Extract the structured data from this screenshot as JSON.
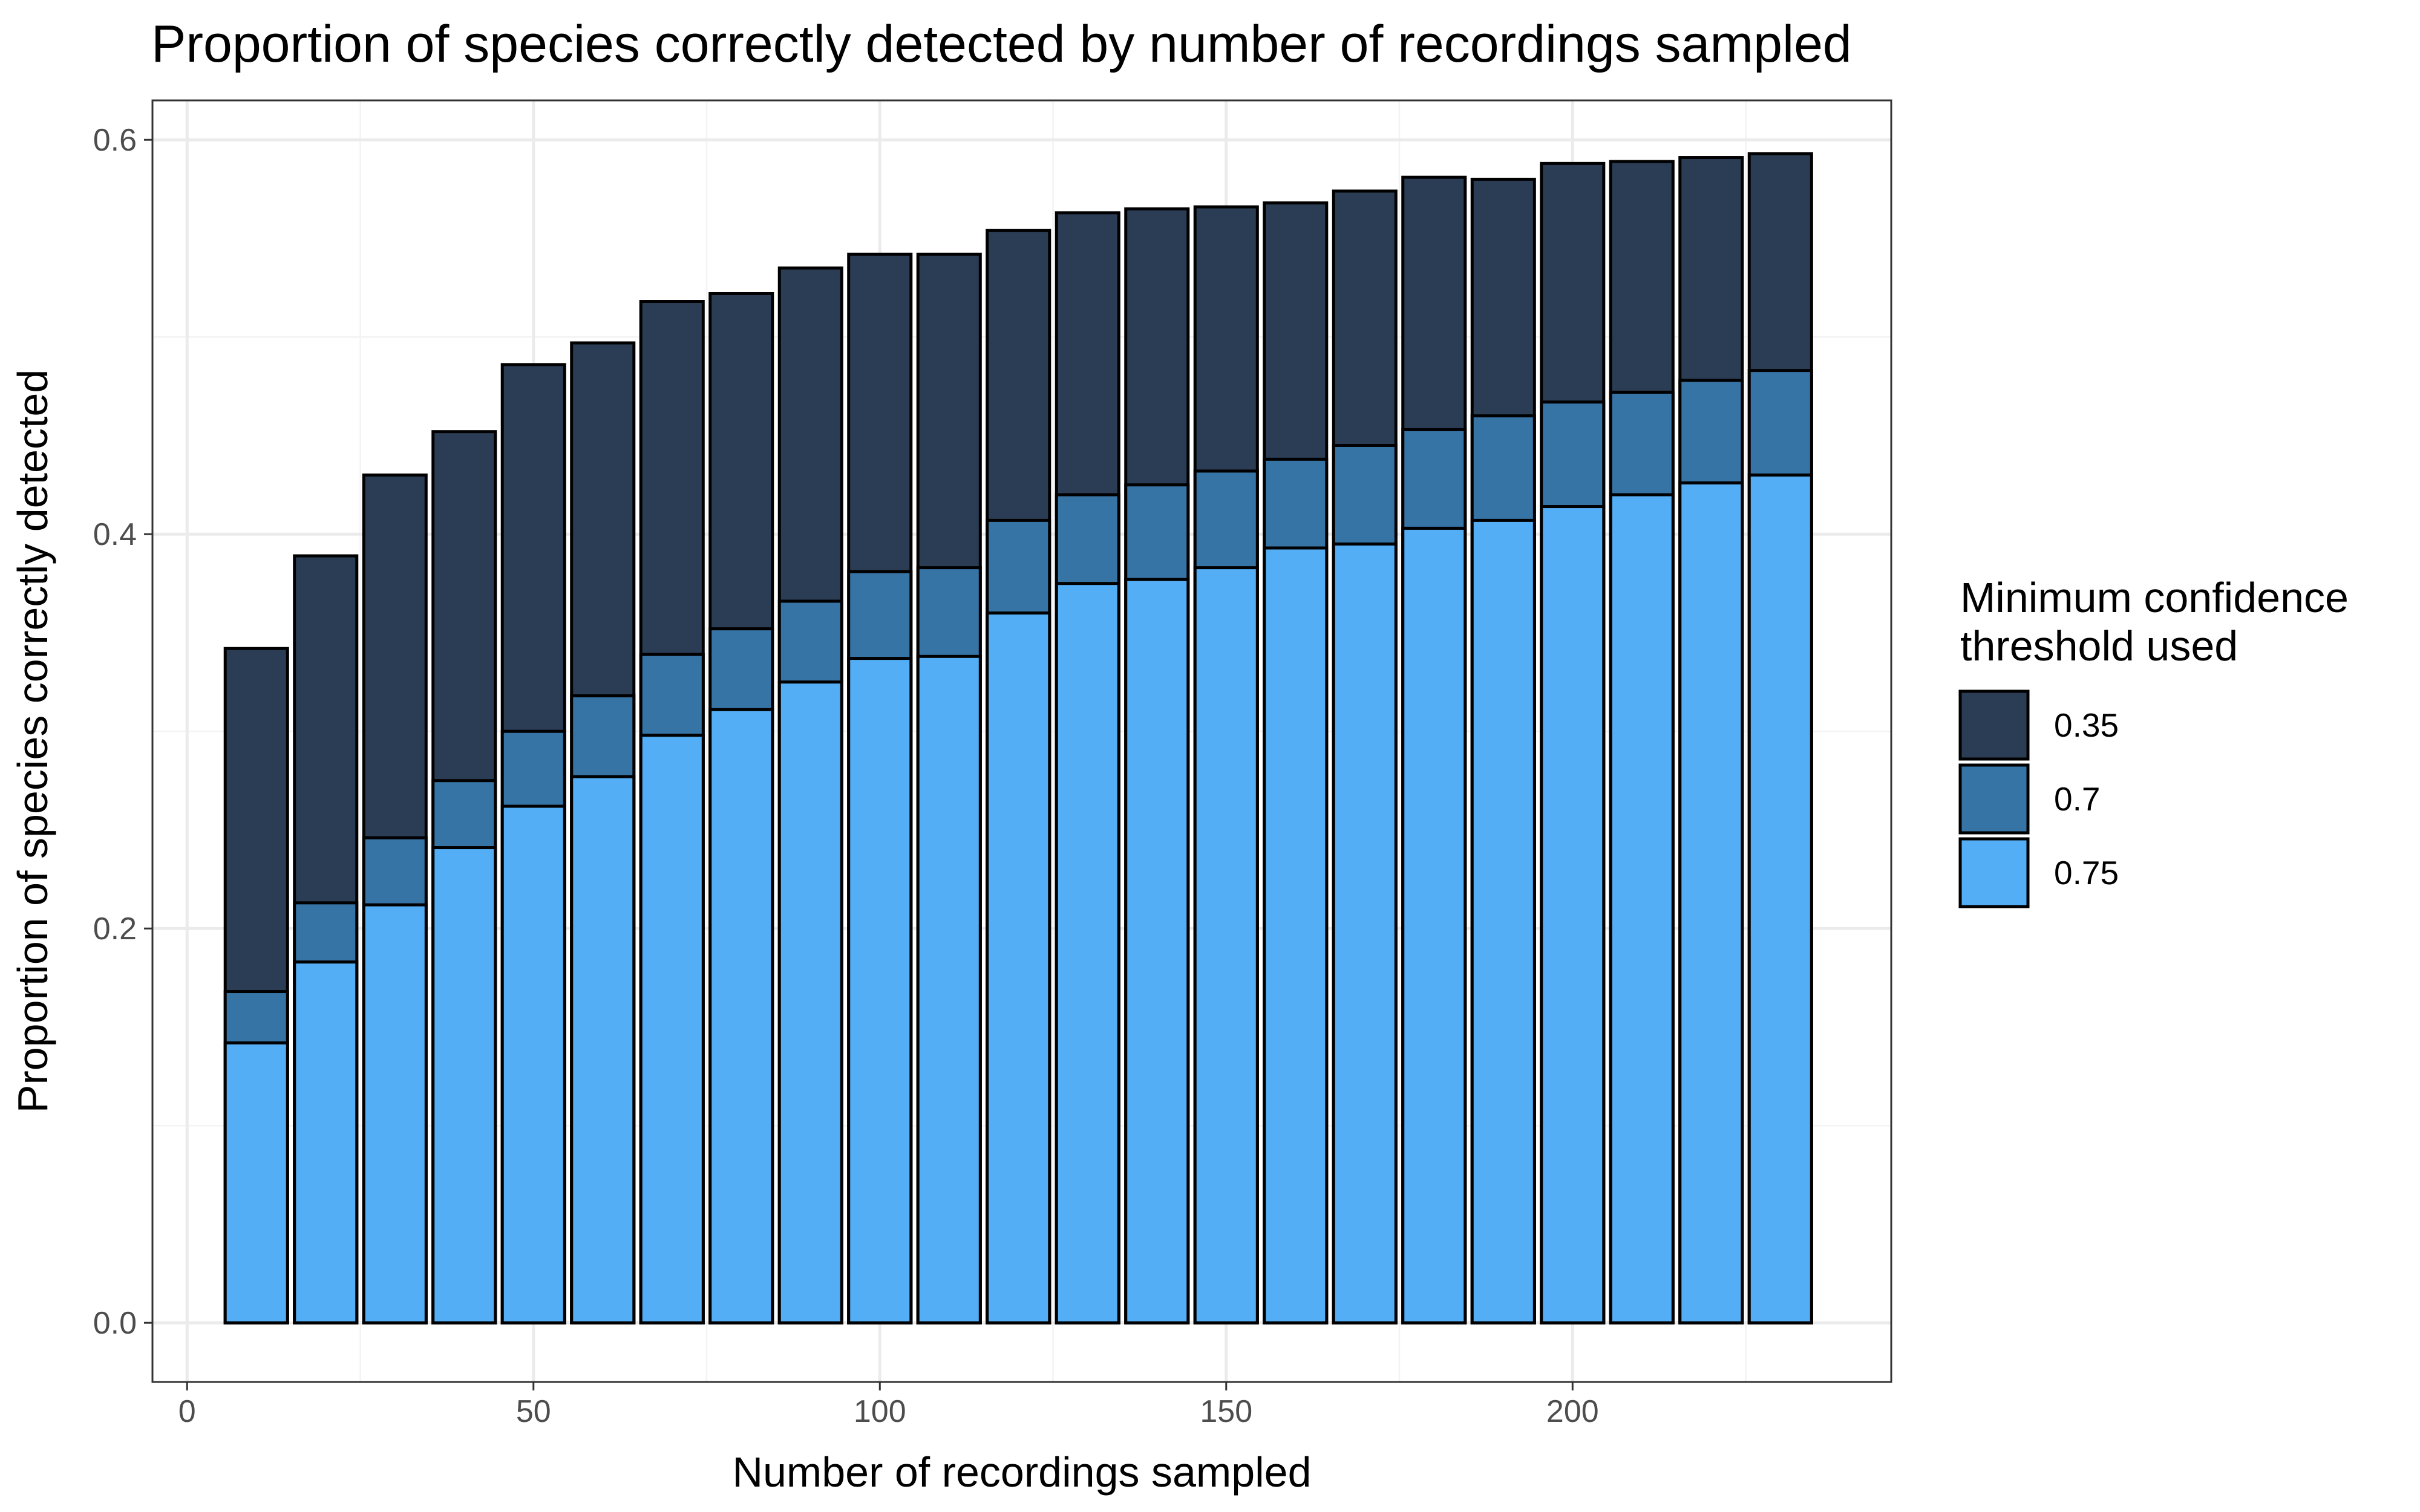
{
  "chart_data": {
    "type": "bar",
    "stacked": false,
    "overlay": true,
    "title": "Proportion of species correctly detected by number of recordings sampled",
    "xlabel": "Number of recordings sampled",
    "ylabel": "Proportion of species correctly detected",
    "xlim": [
      -5,
      246
    ],
    "ylim": [
      -0.03,
      0.62
    ],
    "x_ticks": [
      0,
      50,
      100,
      150,
      200
    ],
    "x_tick_labels": [
      "0",
      "50",
      "100",
      "150",
      "200"
    ],
    "y_ticks": [
      0.0,
      0.2,
      0.4,
      0.6
    ],
    "y_tick_labels": [
      "0.0",
      "0.2",
      "0.4",
      "0.6"
    ],
    "grid": true,
    "legend": {
      "title_lines": [
        "Minimum confidence",
        "threshold used"
      ],
      "placement": "right"
    },
    "x": [
      10,
      20,
      30,
      40,
      50,
      60,
      70,
      80,
      90,
      100,
      110,
      120,
      130,
      140,
      150,
      160,
      170,
      180,
      190,
      200,
      210,
      220,
      230
    ],
    "series": [
      {
        "name": "0.35",
        "color": "#2b3d55",
        "values": [
          0.342,
          0.389,
          0.43,
          0.452,
          0.486,
          0.497,
          0.518,
          0.522,
          0.535,
          0.542,
          0.542,
          0.554,
          0.563,
          0.565,
          0.566,
          0.568,
          0.574,
          0.581,
          0.58,
          0.588,
          0.589,
          0.591,
          0.593
        ]
      },
      {
        "name": "0.7",
        "color": "#3774a6",
        "values": [
          0.168,
          0.213,
          0.246,
          0.275,
          0.3,
          0.318,
          0.339,
          0.352,
          0.366,
          0.381,
          0.383,
          0.407,
          0.42,
          0.425,
          0.432,
          0.438,
          0.445,
          0.453,
          0.46,
          0.467,
          0.472,
          0.478,
          0.483
        ]
      },
      {
        "name": "0.75",
        "color": "#53aef5",
        "values": [
          0.142,
          0.183,
          0.212,
          0.241,
          0.262,
          0.277,
          0.298,
          0.311,
          0.325,
          0.337,
          0.338,
          0.36,
          0.375,
          0.377,
          0.383,
          0.393,
          0.395,
          0.403,
          0.407,
          0.414,
          0.42,
          0.426,
          0.43
        ]
      }
    ]
  }
}
